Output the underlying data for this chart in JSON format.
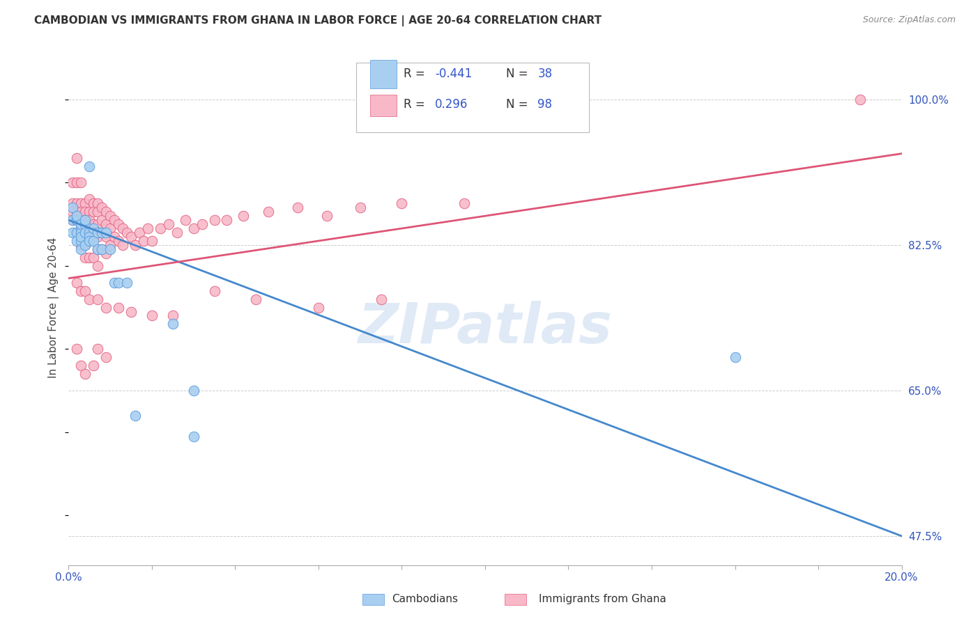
{
  "title": "CAMBODIAN VS IMMIGRANTS FROM GHANA IN LABOR FORCE | AGE 20-64 CORRELATION CHART",
  "source": "Source: ZipAtlas.com",
  "ylabel": "In Labor Force | Age 20-64",
  "xlim": [
    0.0,
    0.2
  ],
  "ylim": [
    0.44,
    1.06
  ],
  "xticks": [
    0.0,
    0.02,
    0.04,
    0.06,
    0.08,
    0.1,
    0.12,
    0.14,
    0.16,
    0.18,
    0.2
  ],
  "yticks_right": [
    0.475,
    0.65,
    0.825,
    1.0
  ],
  "yticklabels_right": [
    "47.5%",
    "65.0%",
    "82.5%",
    "100.0%"
  ],
  "blue_color": "#a8cff0",
  "pink_color": "#f8b8c8",
  "blue_edge_color": "#5599dd",
  "pink_edge_color": "#e06080",
  "blue_line_color": "#4488cc",
  "pink_line_color": "#dd5577",
  "watermark": "ZIPatlas",
  "watermark_color": "#ccddf0",
  "blue_line_x0": 0.0,
  "blue_line_y0": 0.855,
  "blue_line_x1": 0.2,
  "blue_line_y1": 0.475,
  "pink_line_x0": 0.0,
  "pink_line_y0": 0.785,
  "pink_line_x1": 0.2,
  "pink_line_y1": 0.935,
  "blue_scatter_x": [
    0.001,
    0.001,
    0.001,
    0.002,
    0.002,
    0.002,
    0.002,
    0.002,
    0.003,
    0.003,
    0.003,
    0.003,
    0.003,
    0.003,
    0.004,
    0.004,
    0.004,
    0.004,
    0.005,
    0.005,
    0.005,
    0.005,
    0.006,
    0.006,
    0.007,
    0.007,
    0.008,
    0.008,
    0.009,
    0.01,
    0.011,
    0.012,
    0.014,
    0.016,
    0.025,
    0.03,
    0.16,
    0.03
  ],
  "blue_scatter_y": [
    0.855,
    0.84,
    0.87,
    0.855,
    0.84,
    0.83,
    0.855,
    0.86,
    0.845,
    0.84,
    0.85,
    0.83,
    0.82,
    0.835,
    0.85,
    0.84,
    0.825,
    0.855,
    0.84,
    0.835,
    0.92,
    0.83,
    0.845,
    0.83,
    0.84,
    0.82,
    0.84,
    0.82,
    0.84,
    0.82,
    0.78,
    0.78,
    0.78,
    0.62,
    0.73,
    0.65,
    0.69,
    0.595
  ],
  "pink_scatter_x": [
    0.001,
    0.001,
    0.001,
    0.001,
    0.002,
    0.002,
    0.002,
    0.002,
    0.002,
    0.002,
    0.003,
    0.003,
    0.003,
    0.003,
    0.003,
    0.003,
    0.004,
    0.004,
    0.004,
    0.004,
    0.004,
    0.004,
    0.005,
    0.005,
    0.005,
    0.005,
    0.005,
    0.006,
    0.006,
    0.006,
    0.006,
    0.006,
    0.007,
    0.007,
    0.007,
    0.007,
    0.007,
    0.007,
    0.008,
    0.008,
    0.008,
    0.008,
    0.009,
    0.009,
    0.009,
    0.009,
    0.01,
    0.01,
    0.01,
    0.011,
    0.011,
    0.012,
    0.012,
    0.013,
    0.013,
    0.014,
    0.015,
    0.016,
    0.017,
    0.018,
    0.019,
    0.02,
    0.022,
    0.024,
    0.026,
    0.028,
    0.03,
    0.032,
    0.035,
    0.038,
    0.042,
    0.048,
    0.055,
    0.062,
    0.07,
    0.08,
    0.095,
    0.002,
    0.003,
    0.004,
    0.005,
    0.007,
    0.009,
    0.012,
    0.015,
    0.02,
    0.025,
    0.035,
    0.045,
    0.06,
    0.075,
    0.002,
    0.003,
    0.004,
    0.006,
    0.007,
    0.009,
    0.19
  ],
  "pink_scatter_y": [
    0.875,
    0.865,
    0.855,
    0.9,
    0.875,
    0.865,
    0.855,
    0.84,
    0.9,
    0.93,
    0.875,
    0.865,
    0.855,
    0.84,
    0.825,
    0.9,
    0.875,
    0.865,
    0.855,
    0.84,
    0.825,
    0.81,
    0.88,
    0.865,
    0.855,
    0.84,
    0.81,
    0.875,
    0.865,
    0.85,
    0.835,
    0.81,
    0.875,
    0.865,
    0.85,
    0.835,
    0.82,
    0.8,
    0.87,
    0.855,
    0.84,
    0.82,
    0.865,
    0.85,
    0.835,
    0.815,
    0.86,
    0.845,
    0.825,
    0.855,
    0.835,
    0.85,
    0.83,
    0.845,
    0.825,
    0.84,
    0.835,
    0.825,
    0.84,
    0.83,
    0.845,
    0.83,
    0.845,
    0.85,
    0.84,
    0.855,
    0.845,
    0.85,
    0.855,
    0.855,
    0.86,
    0.865,
    0.87,
    0.86,
    0.87,
    0.875,
    0.875,
    0.78,
    0.77,
    0.77,
    0.76,
    0.76,
    0.75,
    0.75,
    0.745,
    0.74,
    0.74,
    0.77,
    0.76,
    0.75,
    0.76,
    0.7,
    0.68,
    0.67,
    0.68,
    0.7,
    0.69,
    1.0
  ]
}
